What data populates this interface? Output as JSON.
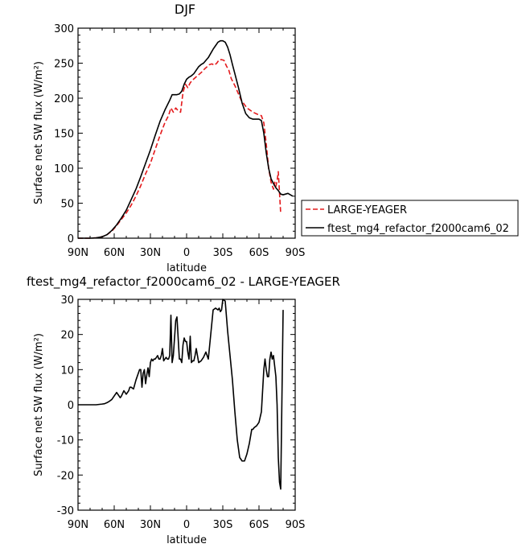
{
  "chart_data": [
    {
      "type": "line",
      "title": "DJF",
      "xlabel": "latitude",
      "ylabel": "Surface net SW flux (W/m²)",
      "xlim": [
        90,
        -90
      ],
      "ylim": [
        0,
        300
      ],
      "x_ticks": [
        90,
        60,
        30,
        0,
        -30,
        -60,
        -90
      ],
      "x_tick_labels": [
        "90N",
        "60N",
        "30N",
        "0",
        "30S",
        "60S",
        "90S"
      ],
      "y_ticks": [
        0,
        50,
        100,
        150,
        200,
        250,
        300
      ],
      "grid": false,
      "legend_position": "right, outside plot area",
      "series": [
        {
          "name": "LARGE-YEAGER",
          "color": "#e41a1c",
          "dash": "dashed",
          "x": [
            90,
            80,
            75,
            70,
            66,
            62,
            58,
            54,
            50,
            46,
            42,
            38,
            34,
            30,
            26,
            22,
            18,
            15,
            13,
            11,
            9,
            7,
            5,
            3,
            1,
            -1,
            -3,
            -5,
            -7,
            -9,
            -11,
            -13,
            -15,
            -17,
            -19,
            -21,
            -23,
            -25,
            -27,
            -29,
            -31,
            -33,
            -35,
            -37,
            -40,
            -45,
            -50,
            -55,
            -60,
            -62,
            -64,
            -66,
            -68,
            -70,
            -72,
            -73,
            -74,
            -75,
            -76,
            -77,
            -78
          ],
          "y": [
            0,
            0,
            0.5,
            2,
            5,
            10,
            18,
            27,
            36,
            47,
            60,
            75,
            92,
            107,
            127,
            147,
            165,
            175,
            186,
            180,
            186,
            182,
            180,
            208,
            220,
            215,
            222,
            226,
            229,
            232,
            235,
            238,
            242,
            245,
            248,
            249,
            247,
            250,
            255,
            255,
            254,
            246,
            240,
            228,
            218,
            198,
            186,
            180,
            176,
            175,
            165,
            135,
            100,
            80,
            70,
            80,
            74,
            82,
            95,
            65,
            35
          ]
        },
        {
          "name": "ftest_mg4_refactor_f2000cam6_02",
          "color": "#000000",
          "dash": "solid",
          "x": [
            90,
            80,
            75,
            70,
            66,
            62,
            58,
            54,
            50,
            46,
            42,
            38,
            34,
            30,
            26,
            22,
            18,
            14,
            12,
            10,
            8,
            6,
            4,
            2,
            0,
            -2,
            -4,
            -6,
            -8,
            -10,
            -12,
            -14,
            -16,
            -18,
            -20,
            -22,
            -24,
            -26,
            -28,
            -30,
            -32,
            -34,
            -36,
            -38,
            -40,
            -43,
            -46,
            -49,
            -52,
            -55,
            -58,
            -60,
            -62,
            -64,
            -66,
            -68,
            -70,
            -72,
            -74,
            -76,
            -78,
            -80,
            -82,
            -84,
            -86,
            -88
          ],
          "y": [
            0,
            0,
            0.5,
            2,
            5,
            11,
            19,
            29,
            40,
            55,
            70,
            88,
            107,
            126,
            147,
            167,
            183,
            197,
            205,
            205,
            205,
            206,
            210,
            220,
            227,
            230,
            232,
            235,
            240,
            245,
            248,
            250,
            254,
            258,
            264,
            270,
            275,
            280,
            282,
            282,
            280,
            273,
            262,
            248,
            235,
            215,
            193,
            178,
            172,
            170,
            170,
            170,
            168,
            150,
            122,
            100,
            85,
            78,
            72,
            68,
            63,
            62,
            63,
            64,
            62,
            60
          ]
        }
      ]
    },
    {
      "type": "line",
      "title": "ftest_mg4_refactor_f2000cam6_02 - LARGE-YEAGER",
      "xlabel": "latitude",
      "ylabel": "Surface net SW flux (W/m²)",
      "xlim": [
        90,
        -90
      ],
      "ylim": [
        -30,
        30
      ],
      "x_ticks": [
        90,
        60,
        30,
        0,
        -30,
        -60,
        -90
      ],
      "x_tick_labels": [
        "90N",
        "60N",
        "30N",
        "0",
        "30S",
        "60S",
        "90S"
      ],
      "y_ticks": [
        -30,
        -20,
        -10,
        0,
        10,
        20,
        30
      ],
      "grid": false,
      "series": [
        {
          "color": "#000000",
          "dash": "solid",
          "x": [
            90,
            80,
            75,
            70,
            68,
            66,
            64,
            62,
            60,
            58,
            56,
            55,
            54,
            52,
            50,
            48,
            47,
            46,
            44,
            42,
            41,
            40,
            39,
            38,
            37,
            36,
            35,
            34,
            33,
            32,
            31,
            30,
            29,
            28,
            27,
            26,
            25,
            24,
            23,
            22,
            21,
            20,
            19,
            18,
            17,
            16,
            15,
            14,
            13,
            12,
            11,
            10,
            9,
            8,
            7,
            6,
            5,
            4,
            3,
            2,
            1,
            0,
            -1,
            -2,
            -3,
            -4,
            -5,
            -6,
            -7,
            -8,
            -9,
            -10,
            -12,
            -14,
            -16,
            -18,
            -20,
            -22,
            -24,
            -26,
            -27,
            -28,
            -29,
            -30,
            -32,
            -34,
            -36,
            -38,
            -40,
            -42,
            -44,
            -46,
            -48,
            -50,
            -52,
            -54,
            -55,
            -56,
            -58,
            -60,
            -62,
            -64,
            -65,
            -66,
            -67,
            -68,
            -69,
            -70,
            -71,
            -72,
            -73,
            -74,
            -75,
            -76,
            -77,
            -78
          ],
          "y": [
            0,
            0,
            0,
            0.2,
            0.3,
            0.6,
            1,
            1.5,
            2.5,
            3.5,
            2.5,
            2,
            2.5,
            4,
            3,
            4,
            5,
            5,
            4.5,
            7,
            8,
            9,
            10,
            10,
            5,
            9,
            10,
            6,
            8.5,
            10.5,
            8,
            12,
            13,
            12.5,
            13,
            13,
            13.5,
            14,
            13,
            13,
            14,
            16,
            12.5,
            13,
            13.5,
            13,
            13,
            14,
            25.5,
            12,
            14,
            19,
            24,
            25,
            19,
            13,
            13,
            12,
            17,
            19,
            18,
            18,
            15,
            13,
            19.5,
            12,
            12.5,
            12.5,
            14,
            16,
            14,
            12,
            12.5,
            13.5,
            15,
            13,
            20,
            27,
            27.5,
            27,
            27.5,
            26.5,
            27,
            30,
            29.5,
            21,
            14,
            7,
            -2,
            -10,
            -15,
            -16,
            -16,
            -14,
            -11,
            -7,
            -7,
            -6.5,
            -6,
            -5,
            -2,
            10,
            13,
            10,
            8,
            8,
            13,
            15,
            13,
            14,
            11,
            8,
            0,
            -15,
            -22,
            -24
          ],
          "tail_x": [
            -78,
            -80
          ],
          "tail_y": [
            -24,
            27
          ]
        }
      ]
    }
  ]
}
